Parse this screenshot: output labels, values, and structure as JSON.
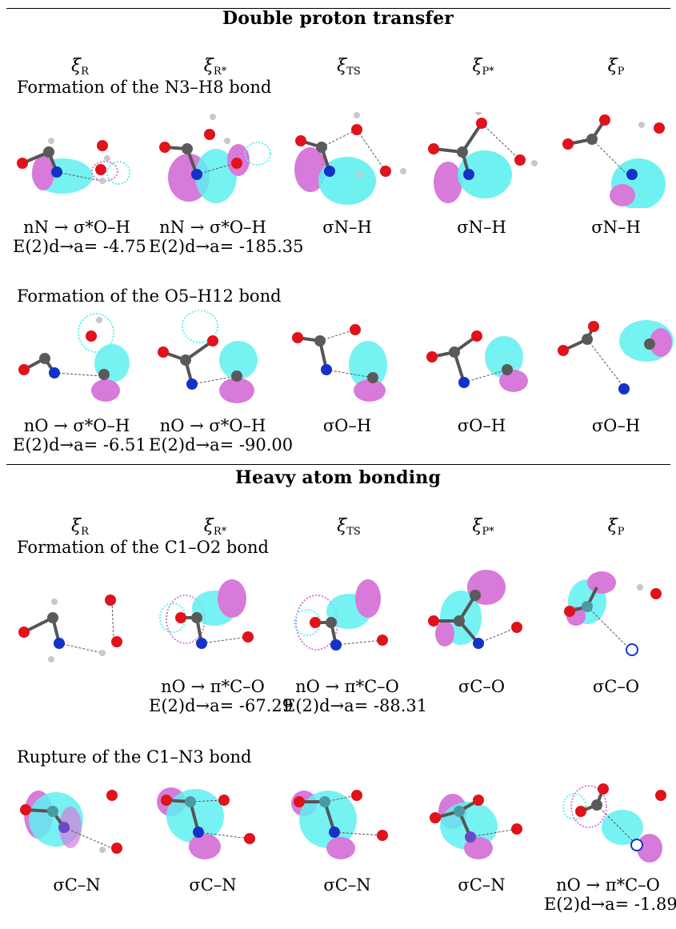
{
  "sections": [
    {
      "title": "Double proton transfer",
      "headers": [
        "R",
        "R*",
        "TS",
        "P*",
        "P"
      ],
      "rows": [
        {
          "heading": "Formation of the N3–H8 bond",
          "labels": [
            {
              "text": "nN → σ*O–H",
              "energy": "E(2)d→a= -4.75"
            },
            {
              "text": "nN → σ*O–H",
              "energy": "E(2)d→a= -185.35"
            },
            {
              "text": "σN–H",
              "energy": ""
            },
            {
              "text": "σN–H",
              "energy": ""
            },
            {
              "text": "σN–H",
              "energy": ""
            }
          ]
        },
        {
          "heading": "Formation of the O5–H12 bond",
          "labels": [
            {
              "text": "nO → σ*O–H",
              "energy": "E(2)d→a= -6.51"
            },
            {
              "text": "nO → σ*O–H",
              "energy": "E(2)d→a= -90.00"
            },
            {
              "text": "σO–H",
              "energy": ""
            },
            {
              "text": "σO–H",
              "energy": ""
            },
            {
              "text": "σO–H",
              "energy": ""
            }
          ]
        }
      ]
    },
    {
      "title": "Heavy atom bonding",
      "headers": [
        "R",
        "R*",
        "TS",
        "P*",
        "P"
      ],
      "rows": [
        {
          "heading": "Formation of the C1–O2 bond",
          "labels": [
            {
              "text": "",
              "energy": ""
            },
            {
              "text": "nO → π*C–O",
              "energy": "E(2)d→a= -67.29"
            },
            {
              "text": "nO → π*C–O",
              "energy": "E(2)d→a= -88.31"
            },
            {
              "text": "σC–O",
              "energy": ""
            },
            {
              "text": "σC–O",
              "energy": ""
            }
          ]
        },
        {
          "heading": "Rupture of the C1–N3 bond",
          "labels": [
            {
              "text": "σC–N",
              "energy": ""
            },
            {
              "text": "σC–N",
              "energy": ""
            },
            {
              "text": "σC–N",
              "energy": ""
            },
            {
              "text": "σC–N",
              "energy": ""
            },
            {
              "text": "nO → π*C–O",
              "energy": "E(2)d→a= -1.89"
            }
          ]
        }
      ]
    }
  ],
  "colors": {
    "orbital_cyan": "#5ff0f0",
    "orbital_magenta": "#d77ad9",
    "atom_oxygen": "#e0121b",
    "atom_nitrogen": "#1432c8",
    "atom_carbon": "#5a5a5a",
    "atom_hydrogen": "#c8c8c8"
  },
  "xi_symbol": "ξ"
}
